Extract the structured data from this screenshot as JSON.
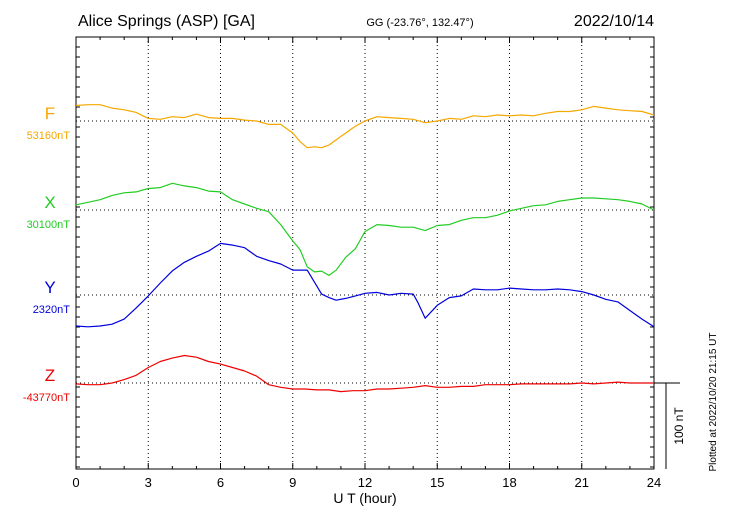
{
  "header": {
    "station": "Alice Springs (ASP)  [GA]",
    "coords": "GG (-23.76°, 132.47°)",
    "date": "2022/10/14"
  },
  "side_note": "Plotted at 2022/10/20 21:15 UT",
  "scale_label": "100 nT",
  "chart_data": {
    "type": "line",
    "xlabel": "U T (hour)",
    "x_ticks": [
      "0",
      "3",
      "6",
      "9",
      "12",
      "15",
      "18",
      "21",
      "24"
    ],
    "xlim": [
      0,
      24
    ],
    "scale_nT": 100,
    "grid": true,
    "series": [
      {
        "name": "F",
        "baseline_label": "53160nT",
        "color": "#f5a800",
        "unit": "nT offset from baseline",
        "x": [
          0,
          0.5,
          1,
          1.5,
          2,
          2.5,
          3,
          3.5,
          4,
          4.5,
          5,
          5.5,
          6,
          6.5,
          7,
          7.5,
          8,
          8.5,
          9,
          9.3,
          9.6,
          9.9,
          10.2,
          10.5,
          10.8,
          11.2,
          11.6,
          12,
          12.5,
          13,
          13.5,
          14,
          14.5,
          15,
          15.5,
          16,
          16.5,
          17,
          17.5,
          18,
          18.5,
          19,
          19.5,
          20,
          20.5,
          21,
          21.5,
          22,
          22.5,
          23,
          23.5,
          24
        ],
        "y": [
          18,
          19,
          19,
          15,
          13,
          10,
          3,
          2,
          5,
          4,
          8,
          4,
          3,
          3,
          1,
          0,
          -4,
          -4,
          -14,
          -24,
          -31,
          -30,
          -31,
          -28,
          -22,
          -14,
          -6,
          0,
          5,
          4,
          3,
          2,
          -2,
          0,
          3,
          2,
          6,
          5,
          7,
          6,
          7,
          6,
          9,
          11,
          11,
          13,
          17,
          15,
          13,
          12,
          11,
          7
        ]
      },
      {
        "name": "X",
        "baseline_label": "30100nT",
        "color": "#22cc22",
        "unit": "nT offset from baseline",
        "x": [
          0,
          0.5,
          1,
          1.5,
          2,
          2.5,
          3,
          3.5,
          4,
          4.5,
          5,
          5.5,
          6,
          6.5,
          7,
          7.5,
          8,
          8.5,
          9,
          9.3,
          9.6,
          9.9,
          10.2,
          10.5,
          10.8,
          11.2,
          11.6,
          12,
          12.5,
          13,
          13.5,
          14,
          14.5,
          15,
          15.5,
          16,
          16.5,
          17,
          17.5,
          18,
          18.5,
          19,
          19.5,
          20,
          20.5,
          21,
          21.5,
          22,
          22.5,
          23,
          23.5,
          24
        ],
        "y": [
          6,
          9,
          12,
          17,
          20,
          21,
          25,
          26,
          31,
          28,
          26,
          22,
          21,
          12,
          7,
          2,
          -2,
          -17,
          -36,
          -46,
          -66,
          -72,
          -71,
          -76,
          -70,
          -55,
          -45,
          -25,
          -17,
          -18,
          -20,
          -20,
          -24,
          -18,
          -17,
          -12,
          -9,
          -9,
          -6,
          -1,
          2,
          5,
          6,
          10,
          12,
          14,
          14,
          13,
          12,
          10,
          7,
          0
        ]
      },
      {
        "name": "Y",
        "baseline_label": "2320nT",
        "color": "#0000dd",
        "unit": "nT offset from baseline",
        "x": [
          0,
          0.5,
          1,
          1.5,
          2,
          2.5,
          3,
          3.5,
          4,
          4.5,
          5,
          5.5,
          6,
          6.5,
          7,
          7.5,
          8,
          8.5,
          9,
          9.3,
          9.6,
          9.9,
          10.2,
          10.5,
          10.8,
          11.2,
          11.6,
          12,
          12.5,
          13,
          13.5,
          14,
          14.2,
          14.5,
          15,
          15.5,
          16,
          16.5,
          17,
          17.5,
          18,
          18.5,
          19,
          19.5,
          20,
          20.5,
          21,
          21.5,
          22,
          22.5,
          23,
          23.5,
          24
        ],
        "y": [
          -36,
          -37,
          -36,
          -34,
          -28,
          -15,
          -1,
          14,
          28,
          38,
          45,
          51,
          60,
          58,
          55,
          45,
          40,
          36,
          29,
          29,
          29,
          15,
          1,
          -3,
          -6,
          -4,
          -1,
          2,
          3,
          0,
          2,
          1,
          -9,
          -27,
          -12,
          -3,
          -1,
          7,
          6,
          6,
          8,
          7,
          6,
          6,
          7,
          6,
          4,
          0,
          -5,
          -8,
          -18,
          -28,
          -37
        ]
      },
      {
        "name": "Z",
        "baseline_label": "-43770nT",
        "color": "#ee0000",
        "unit": "nT offset from baseline",
        "x": [
          0,
          0.5,
          1,
          1.5,
          2,
          2.5,
          3,
          3.5,
          4,
          4.5,
          5,
          5.5,
          6,
          6.5,
          7,
          7.5,
          8,
          8.5,
          9,
          9.5,
          10,
          10.5,
          11,
          11.5,
          12,
          12.5,
          13,
          13.5,
          14,
          14.5,
          15,
          15.5,
          16,
          16.5,
          17,
          17.5,
          18,
          18.5,
          19,
          19.5,
          20,
          20.5,
          21,
          21.5,
          22,
          22.5,
          23,
          23.5,
          24
        ],
        "y": [
          -1,
          -2,
          -2,
          0,
          4,
          9,
          18,
          25,
          29,
          32,
          30,
          25,
          22,
          18,
          14,
          8,
          -2,
          -5,
          -7,
          -7,
          -8,
          -8,
          -10,
          -9,
          -9,
          -7,
          -7,
          -6,
          -5,
          -3,
          -5,
          -5,
          -4,
          -4,
          -2,
          -2,
          -2,
          -1,
          -1,
          -1,
          -1,
          -1,
          0,
          -1,
          0,
          1,
          0,
          0,
          0
        ]
      }
    ]
  }
}
